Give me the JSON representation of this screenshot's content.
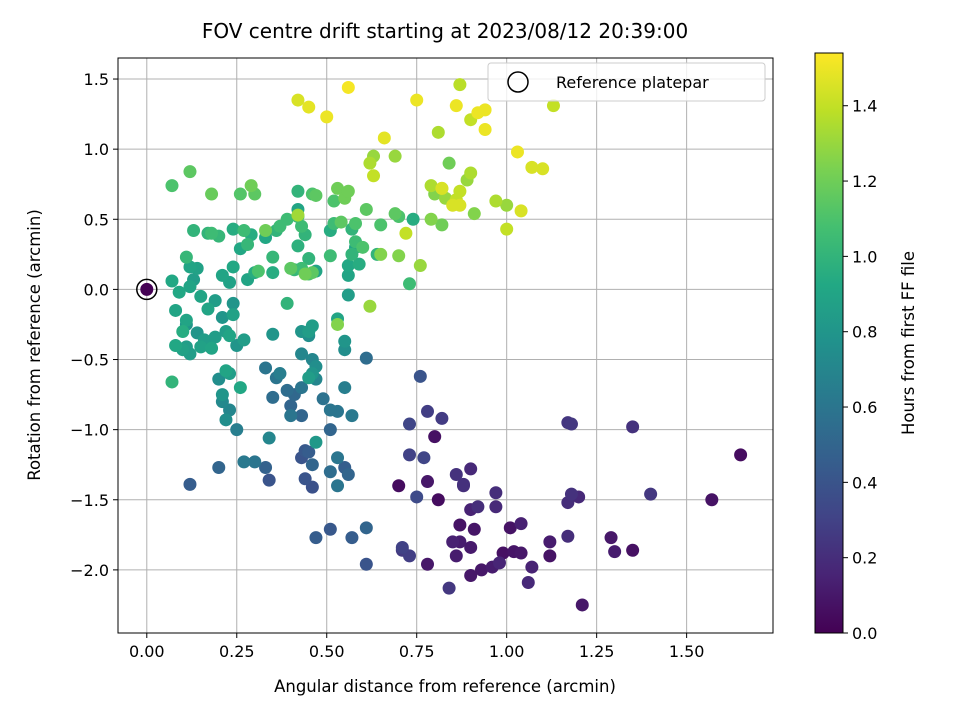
{
  "chart_data": {
    "type": "scatter",
    "title": "FOV centre drift starting at 2023/08/12 20:39:00",
    "xlabel": "Angular distance from reference (arcmin)",
    "ylabel": "Rotation from reference (arcmin)",
    "xlim": [
      -0.08,
      1.74
    ],
    "ylim": [
      -2.45,
      1.65
    ],
    "xticks": [
      0.0,
      0.25,
      0.5,
      0.75,
      1.0,
      1.25,
      1.5
    ],
    "xtick_labels": [
      "0.00",
      "0.25",
      "0.50",
      "0.75",
      "1.00",
      "1.25",
      "1.50"
    ],
    "yticks": [
      -2.0,
      -1.5,
      -1.0,
      -0.5,
      0.0,
      0.5,
      1.0,
      1.5
    ],
    "ytick_labels": [
      "−2.0",
      "−1.5",
      "−1.0",
      "−0.5",
      "0.0",
      "0.5",
      "1.0",
      "1.5"
    ],
    "grid": true,
    "legend": {
      "placement": "top-right",
      "entries": [
        "Reference platepar"
      ]
    },
    "reference_point": {
      "x": 0.0,
      "y": 0.0
    },
    "colorbar": {
      "label": "Hours from first FF file",
      "colormap": "viridis",
      "range": [
        0.0,
        1.54
      ],
      "ticks": [
        0.0,
        0.2,
        0.4,
        0.6,
        0.8,
        1.0,
        1.2,
        1.4
      ],
      "tick_labels": [
        "0.0",
        "0.2",
        "0.4",
        "0.6",
        "0.8",
        "1.0",
        "1.2",
        "1.4"
      ]
    },
    "points": [
      [
        1.65,
        -1.18,
        0.05
      ],
      [
        1.57,
        -1.5,
        0.08
      ],
      [
        1.35,
        -1.86,
        0.07
      ],
      [
        1.35,
        -0.98,
        0.22
      ],
      [
        1.4,
        -1.46,
        0.25
      ],
      [
        1.29,
        -1.77,
        0.1
      ],
      [
        1.3,
        -1.87,
        0.12
      ],
      [
        1.21,
        -2.25,
        0.1
      ],
      [
        1.17,
        -1.52,
        0.2
      ],
      [
        1.18,
        -1.46,
        0.22
      ],
      [
        1.2,
        -1.48,
        0.18
      ],
      [
        1.17,
        -1.76,
        0.2
      ],
      [
        1.17,
        -0.95,
        0.24
      ],
      [
        1.18,
        -0.96,
        0.25
      ],
      [
        1.12,
        -1.9,
        0.08
      ],
      [
        1.12,
        -1.8,
        0.12
      ],
      [
        1.07,
        -1.98,
        0.15
      ],
      [
        1.06,
        -2.09,
        0.18
      ],
      [
        1.04,
        -1.88,
        0.1
      ],
      [
        1.04,
        -1.67,
        0.14
      ],
      [
        1.02,
        -1.87,
        0.09
      ],
      [
        1.01,
        -1.7,
        0.08
      ],
      [
        0.99,
        -1.88,
        0.07
      ],
      [
        0.98,
        -1.95,
        0.16
      ],
      [
        0.97,
        -1.55,
        0.18
      ],
      [
        0.97,
        -1.45,
        0.2
      ],
      [
        0.96,
        -1.98,
        0.12
      ],
      [
        0.93,
        -2.0,
        0.1
      ],
      [
        0.91,
        -1.71,
        0.09
      ],
      [
        0.9,
        -2.04,
        0.1
      ],
      [
        0.9,
        -1.84,
        0.11
      ],
      [
        0.87,
        -1.68,
        0.08
      ],
      [
        0.87,
        -1.8,
        0.12
      ],
      [
        0.9,
        -1.57,
        0.15
      ],
      [
        0.9,
        -1.28,
        0.18
      ],
      [
        0.92,
        -1.55,
        0.2
      ],
      [
        0.88,
        -1.39,
        0.21
      ],
      [
        0.86,
        -1.32,
        0.22
      ],
      [
        0.88,
        -1.4,
        0.2
      ],
      [
        0.85,
        -1.8,
        0.14
      ],
      [
        0.86,
        -1.9,
        0.12
      ],
      [
        0.84,
        -2.13,
        0.25
      ],
      [
        0.81,
        -1.5,
        0.05
      ],
      [
        0.8,
        -1.05,
        0.07
      ],
      [
        0.78,
        -0.87,
        0.28
      ],
      [
        0.82,
        -0.92,
        0.27
      ],
      [
        0.78,
        -1.37,
        0.1
      ],
      [
        0.77,
        -1.2,
        0.32
      ],
      [
        0.76,
        -0.62,
        0.4
      ],
      [
        0.75,
        -1.48,
        0.35
      ],
      [
        0.73,
        -1.9,
        0.28
      ],
      [
        0.71,
        -1.86,
        0.26
      ],
      [
        0.7,
        -1.4,
        0.05
      ],
      [
        0.73,
        -1.18,
        0.3
      ],
      [
        0.73,
        -0.96,
        0.32
      ],
      [
        0.78,
        -1.96,
        0.1
      ],
      [
        0.71,
        -1.84,
        0.3
      ],
      [
        0.61,
        -1.96,
        0.4
      ],
      [
        0.61,
        -1.7,
        0.5
      ],
      [
        0.61,
        -0.49,
        0.55
      ],
      [
        0.57,
        -1.77,
        0.45
      ],
      [
        0.51,
        -1.71,
        0.42
      ],
      [
        0.56,
        -1.32,
        0.5
      ],
      [
        0.55,
        -1.27,
        0.46
      ],
      [
        0.53,
        -1.4,
        0.6
      ],
      [
        0.53,
        -1.2,
        0.6
      ],
      [
        0.51,
        -1.3,
        0.55
      ],
      [
        0.51,
        -1.0,
        0.5
      ],
      [
        0.53,
        -0.87,
        0.6
      ],
      [
        0.57,
        -0.9,
        0.62
      ],
      [
        0.55,
        -0.7,
        0.65
      ],
      [
        0.49,
        -0.78,
        0.58
      ],
      [
        0.51,
        -0.86,
        0.6
      ],
      [
        0.47,
        -1.77,
        0.45
      ],
      [
        0.46,
        -1.41,
        0.38
      ],
      [
        0.44,
        -1.35,
        0.4
      ],
      [
        0.44,
        -1.15,
        0.42
      ],
      [
        0.43,
        -1.2,
        0.4
      ],
      [
        0.46,
        -1.25,
        0.5
      ],
      [
        0.47,
        -1.09,
        0.82
      ],
      [
        0.45,
        -1.16,
        0.45
      ],
      [
        0.43,
        -0.9,
        0.5
      ],
      [
        0.4,
        -0.83,
        0.5
      ],
      [
        0.4,
        -0.9,
        0.6
      ],
      [
        0.43,
        -0.7,
        0.6
      ],
      [
        0.41,
        -0.75,
        0.52
      ],
      [
        0.39,
        -0.72,
        0.55
      ],
      [
        0.37,
        -0.6,
        0.65
      ],
      [
        0.36,
        -0.63,
        0.6
      ],
      [
        0.33,
        -0.56,
        0.6
      ],
      [
        0.35,
        -0.77,
        0.55
      ],
      [
        0.33,
        -1.27,
        0.48
      ],
      [
        0.34,
        -1.36,
        0.4
      ],
      [
        0.34,
        -1.06,
        0.7
      ],
      [
        0.3,
        -1.23,
        0.6
      ],
      [
        0.27,
        -1.23,
        0.62
      ],
      [
        0.25,
        -1.0,
        0.65
      ],
      [
        0.23,
        -0.86,
        0.7
      ],
      [
        0.22,
        -0.93,
        0.75
      ],
      [
        0.2,
        -1.27,
        0.5
      ],
      [
        0.12,
        -1.39,
        0.45
      ],
      [
        0.21,
        -0.8,
        0.72
      ],
      [
        0.21,
        -0.75,
        0.8
      ],
      [
        0.2,
        -0.64,
        0.75
      ],
      [
        0.23,
        -0.6,
        0.85
      ],
      [
        0.22,
        -0.58,
        0.9
      ],
      [
        0.25,
        -0.4,
        0.8
      ],
      [
        0.26,
        -0.7,
        0.92
      ],
      [
        0.27,
        -0.36,
        0.85
      ],
      [
        0.23,
        -0.33,
        0.9
      ],
      [
        0.21,
        -0.2,
        0.8
      ],
      [
        0.22,
        -0.3,
        0.85
      ],
      [
        0.24,
        -0.18,
        0.88
      ],
      [
        0.24,
        -0.1,
        0.8
      ],
      [
        0.18,
        -0.42,
        0.9
      ],
      [
        0.17,
        -0.4,
        0.82
      ],
      [
        0.16,
        -0.36,
        0.85
      ],
      [
        0.14,
        -0.31,
        0.8
      ],
      [
        0.15,
        -0.41,
        0.88
      ],
      [
        0.19,
        -0.34,
        0.85
      ],
      [
        0.19,
        -0.08,
        0.85
      ],
      [
        0.17,
        -0.14,
        0.9
      ],
      [
        0.15,
        -0.05,
        0.9
      ],
      [
        0.11,
        -0.22,
        0.9
      ],
      [
        0.11,
        -0.25,
        0.8
      ],
      [
        0.1,
        -0.43,
        0.88
      ],
      [
        0.11,
        -0.41,
        0.85
      ],
      [
        0.08,
        -0.4,
        0.92
      ],
      [
        0.12,
        -0.46,
        0.85
      ],
      [
        0.08,
        -0.15,
        0.9
      ],
      [
        0.07,
        -0.66,
        1.0
      ],
      [
        0.1,
        -0.3,
        0.95
      ],
      [
        0.09,
        -0.02,
        0.92
      ],
      [
        0.07,
        0.06,
        0.92
      ],
      [
        0.12,
        0.02,
        0.9
      ],
      [
        0.13,
        0.07,
        0.85
      ],
      [
        0.12,
        0.16,
        0.9
      ],
      [
        0.11,
        0.23,
        1.02
      ],
      [
        0.14,
        0.15,
        0.88
      ],
      [
        0.17,
        0.4,
        1.0
      ],
      [
        0.2,
        0.38,
        1.02
      ],
      [
        0.18,
        0.4,
        1.05
      ],
      [
        0.18,
        0.68,
        1.18
      ],
      [
        0.13,
        0.42,
        1.0
      ],
      [
        0.12,
        0.84,
        1.15
      ],
      [
        0.07,
        0.74,
        1.1
      ],
      [
        0.21,
        0.1,
        0.9
      ],
      [
        0.23,
        0.05,
        0.88
      ],
      [
        0.24,
        0.16,
        0.92
      ],
      [
        0.24,
        0.43,
        0.95
      ],
      [
        0.26,
        0.29,
        0.92
      ],
      [
        0.28,
        0.32,
        1.02
      ],
      [
        0.27,
        0.42,
        1.05
      ],
      [
        0.26,
        0.68,
        1.12
      ],
      [
        0.29,
        0.74,
        1.2
      ],
      [
        0.28,
        0.07,
        0.9
      ],
      [
        0.3,
        0.12,
        0.95
      ],
      [
        0.33,
        0.37,
        0.92
      ],
      [
        0.35,
        0.12,
        0.95
      ],
      [
        0.35,
        0.23,
        1.02
      ],
      [
        0.35,
        -0.32,
        0.8
      ],
      [
        0.39,
        -0.1,
        1.0
      ],
      [
        0.36,
        0.42,
        1.0
      ],
      [
        0.37,
        0.45,
        1.05
      ],
      [
        0.39,
        0.5,
        1.05
      ],
      [
        0.41,
        0.14,
        1.02
      ],
      [
        0.42,
        0.31,
        0.98
      ],
      [
        0.43,
        0.15,
        1.05
      ],
      [
        0.44,
        0.11,
        1.2
      ],
      [
        0.42,
        0.57,
        0.9
      ],
      [
        0.42,
        0.52,
        1.05
      ],
      [
        0.42,
        0.7,
        1.0
      ],
      [
        0.42,
        0.53,
        1.32
      ],
      [
        0.43,
        0.45,
        1.05
      ],
      [
        0.44,
        0.39,
        1.0
      ],
      [
        0.45,
        0.22,
        1.0
      ],
      [
        0.45,
        0.11,
        1.1
      ],
      [
        0.46,
        0.12,
        1.15
      ],
      [
        0.47,
        0.13,
        0.9
      ],
      [
        0.46,
        0.68,
        1.1
      ],
      [
        0.47,
        0.67,
        1.15
      ],
      [
        0.45,
        -0.3,
        0.85
      ],
      [
        0.43,
        -0.3,
        0.8
      ],
      [
        0.43,
        -0.46,
        0.7
      ],
      [
        0.45,
        -0.33,
        0.75
      ],
      [
        0.46,
        -0.26,
        0.85
      ],
      [
        0.46,
        -0.5,
        0.7
      ],
      [
        0.47,
        -0.55,
        0.75
      ],
      [
        0.46,
        -0.6,
        0.8
      ],
      [
        0.47,
        -0.64,
        0.7
      ],
      [
        0.45,
        -0.63,
        0.85
      ],
      [
        0.51,
        0.24,
        1.05
      ],
      [
        0.51,
        0.42,
        0.95
      ],
      [
        0.52,
        0.47,
        1.05
      ],
      [
        0.52,
        0.63,
        1.1
      ],
      [
        0.53,
        0.72,
        1.2
      ],
      [
        0.54,
        0.48,
        1.15
      ],
      [
        0.55,
        0.65,
        1.2
      ],
      [
        0.56,
        0.7,
        1.2
      ],
      [
        0.57,
        0.43,
        1.0
      ],
      [
        0.58,
        0.3,
        0.9
      ],
      [
        0.58,
        0.34,
        1.05
      ],
      [
        0.58,
        0.47,
        1.1
      ],
      [
        0.59,
        0.18,
        0.95
      ],
      [
        0.57,
        0.25,
        1.0
      ],
      [
        0.56,
        0.17,
        0.92
      ],
      [
        0.56,
        0.1,
        0.9
      ],
      [
        0.56,
        -0.04,
        0.85
      ],
      [
        0.55,
        -0.37,
        0.8
      ],
      [
        0.55,
        -0.43,
        0.75
      ],
      [
        0.53,
        -0.21,
        0.9
      ],
      [
        0.53,
        -0.25,
        1.25
      ],
      [
        0.61,
        0.57,
        1.15
      ],
      [
        0.62,
        -0.12,
        1.3
      ],
      [
        0.64,
        0.25,
        1.0
      ],
      [
        0.65,
        0.46,
        1.1
      ],
      [
        0.65,
        0.25,
        1.25
      ],
      [
        0.69,
        0.54,
        1.15
      ],
      [
        0.7,
        0.24,
        1.25
      ],
      [
        0.7,
        0.52,
        1.1
      ],
      [
        0.72,
        0.4,
        1.4
      ],
      [
        0.73,
        0.04,
        1.05
      ],
      [
        0.74,
        0.5,
        0.95
      ],
      [
        0.76,
        0.17,
        1.3
      ],
      [
        0.79,
        0.5,
        1.25
      ],
      [
        0.8,
        0.68,
        1.25
      ],
      [
        0.79,
        0.74,
        1.35
      ],
      [
        0.82,
        0.46,
        1.2
      ],
      [
        0.82,
        0.72,
        1.45
      ],
      [
        0.82,
        0.72,
        1.4
      ],
      [
        0.83,
        0.65,
        1.3
      ],
      [
        0.84,
        0.9,
        1.2
      ],
      [
        0.85,
        0.6,
        1.45
      ],
      [
        0.86,
        0.64,
        1.4
      ],
      [
        0.87,
        0.7,
        1.4
      ],
      [
        0.87,
        0.6,
        1.45
      ],
      [
        0.89,
        0.78,
        1.3
      ],
      [
        0.9,
        0.83,
        1.35
      ],
      [
        0.91,
        0.54,
        1.25
      ],
      [
        0.97,
        0.63,
        1.35
      ],
      [
        1.0,
        0.6,
        1.3
      ],
      [
        1.0,
        0.43,
        1.4
      ],
      [
        1.04,
        0.56,
        1.45
      ],
      [
        1.07,
        0.87,
        1.45
      ],
      [
        1.1,
        0.86,
        1.45
      ],
      [
        1.03,
        0.98,
        1.5
      ],
      [
        1.13,
        1.31,
        1.4
      ],
      [
        0.94,
        1.28,
        1.5
      ],
      [
        0.92,
        1.26,
        1.5
      ],
      [
        0.94,
        1.14,
        1.5
      ],
      [
        0.9,
        1.21,
        1.4
      ],
      [
        0.86,
        1.31,
        1.5
      ],
      [
        0.87,
        1.46,
        1.38
      ],
      [
        0.81,
        1.12,
        1.35
      ],
      [
        0.75,
        1.35,
        1.5
      ],
      [
        0.69,
        0.95,
        1.3
      ],
      [
        0.66,
        1.08,
        1.48
      ],
      [
        0.63,
        0.95,
        1.3
      ],
      [
        0.62,
        0.9,
        1.35
      ],
      [
        0.63,
        0.81,
        1.4
      ],
      [
        0.56,
        1.44,
        1.52
      ],
      [
        0.5,
        1.23,
        1.5
      ],
      [
        0.45,
        1.3,
        1.48
      ],
      [
        0.42,
        1.35,
        1.45
      ],
      [
        0.6,
        0.3,
        1.1
      ],
      [
        0.4,
        0.15,
        1.15
      ],
      [
        0.31,
        0.13,
        1.1
      ],
      [
        0.29,
        0.39,
        0.95
      ],
      [
        0.33,
        0.42,
        1.2
      ],
      [
        0.3,
        0.68,
        1.15
      ]
    ]
  }
}
